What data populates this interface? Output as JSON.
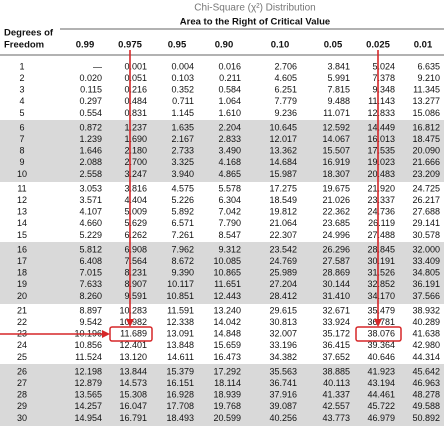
{
  "title": "Chi-Square (χ²) Distribution",
  "subtitle": "Area to the Right of Critical Value",
  "table": {
    "corner": [
      "Degrees of",
      "Freedom"
    ],
    "columns": [
      "0.99",
      "0.975",
      "0.95",
      "0.90",
      "0.10",
      "0.05",
      "0.025",
      "0.01"
    ],
    "rows": [
      [
        "1",
        "—",
        "0.001",
        "0.004",
        "0.016",
        "2.706",
        "3.841",
        "5.024",
        "6.635"
      ],
      [
        "2",
        "0.020",
        "0.051",
        "0.103",
        "0.211",
        "4.605",
        "5.991",
        "7.378",
        "9.210"
      ],
      [
        "3",
        "0.115",
        "0.216",
        "0.352",
        "0.584",
        "6.251",
        "7.815",
        "9.348",
        "11.345"
      ],
      [
        "4",
        "0.297",
        "0.484",
        "0.711",
        "1.064",
        "7.779",
        "9.488",
        "11.143",
        "13.277"
      ],
      [
        "5",
        "0.554",
        "0.831",
        "1.145",
        "1.610",
        "9.236",
        "11.071",
        "12.833",
        "15.086"
      ],
      [
        "6",
        "0.872",
        "1.237",
        "1.635",
        "2.204",
        "10.645",
        "12.592",
        "14.449",
        "16.812"
      ],
      [
        "7",
        "1.239",
        "1.690",
        "2.167",
        "2.833",
        "12.017",
        "14.067",
        "16.013",
        "18.475"
      ],
      [
        "8",
        "1.646",
        "2.180",
        "2.733",
        "3.490",
        "13.362",
        "15.507",
        "17.535",
        "20.090"
      ],
      [
        "9",
        "2.088",
        "2.700",
        "3.325",
        "4.168",
        "14.684",
        "16.919",
        "19.023",
        "21.666"
      ],
      [
        "10",
        "2.558",
        "3.247",
        "3.940",
        "4.865",
        "15.987",
        "18.307",
        "20.483",
        "23.209"
      ],
      [
        "11",
        "3.053",
        "3.816",
        "4.575",
        "5.578",
        "17.275",
        "19.675",
        "21.920",
        "24.725"
      ],
      [
        "12",
        "3.571",
        "4.404",
        "5.226",
        "6.304",
        "18.549",
        "21.026",
        "23.337",
        "26.217"
      ],
      [
        "13",
        "4.107",
        "5.009",
        "5.892",
        "7.042",
        "19.812",
        "22.362",
        "24.736",
        "27.688"
      ],
      [
        "14",
        "4.660",
        "5.629",
        "6.571",
        "7.790",
        "21.064",
        "23.685",
        "26.119",
        "29.141"
      ],
      [
        "15",
        "5.229",
        "6.262",
        "7.261",
        "8.547",
        "22.307",
        "24.996",
        "27.488",
        "30.578"
      ],
      [
        "16",
        "5.812",
        "6.908",
        "7.962",
        "9.312",
        "23.542",
        "26.296",
        "28.845",
        "32.000"
      ],
      [
        "17",
        "6.408",
        "7.564",
        "8.672",
        "10.085",
        "24.769",
        "27.587",
        "30.191",
        "33.409"
      ],
      [
        "18",
        "7.015",
        "8.231",
        "9.390",
        "10.865",
        "25.989",
        "28.869",
        "31.526",
        "34.805"
      ],
      [
        "19",
        "7.633",
        "8.907",
        "10.117",
        "11.651",
        "27.204",
        "30.144",
        "32.852",
        "36.191"
      ],
      [
        "20",
        "8.260",
        "9.591",
        "10.851",
        "12.443",
        "28.412",
        "31.410",
        "34.170",
        "37.566"
      ],
      [
        "21",
        "8.897",
        "10.283",
        "11.591",
        "13.240",
        "29.615",
        "32.671",
        "35.479",
        "38.932"
      ],
      [
        "22",
        "9.542",
        "10.982",
        "12.338",
        "14.042",
        "30.813",
        "33.924",
        "36.781",
        "40.289"
      ],
      [
        "23",
        "10.196",
        "11.689",
        "13.091",
        "14.848",
        "32.007",
        "35.172",
        "38.076",
        "41.638"
      ],
      [
        "24",
        "10.856",
        "12.401",
        "13.848",
        "15.659",
        "33.196",
        "36.415",
        "39.364",
        "42.980"
      ],
      [
        "25",
        "11.524",
        "13.120",
        "14.611",
        "16.473",
        "34.382",
        "37.652",
        "40.646",
        "44.314"
      ],
      [
        "26",
        "12.198",
        "13.844",
        "15.379",
        "17.292",
        "35.563",
        "38.885",
        "41.923",
        "45.642"
      ],
      [
        "27",
        "12.879",
        "14.573",
        "16.151",
        "18.114",
        "36.741",
        "40.113",
        "43.194",
        "46.963"
      ],
      [
        "28",
        "13.565",
        "15.308",
        "16.928",
        "18.939",
        "37.916",
        "41.337",
        "44.461",
        "48.278"
      ],
      [
        "29",
        "14.257",
        "16.047",
        "17.708",
        "19.768",
        "39.087",
        "42.557",
        "45.722",
        "49.588"
      ],
      [
        "30",
        "14.954",
        "16.791",
        "18.493",
        "20.599",
        "40.256",
        "43.773",
        "46.979",
        "50.892"
      ]
    ]
  }
}
